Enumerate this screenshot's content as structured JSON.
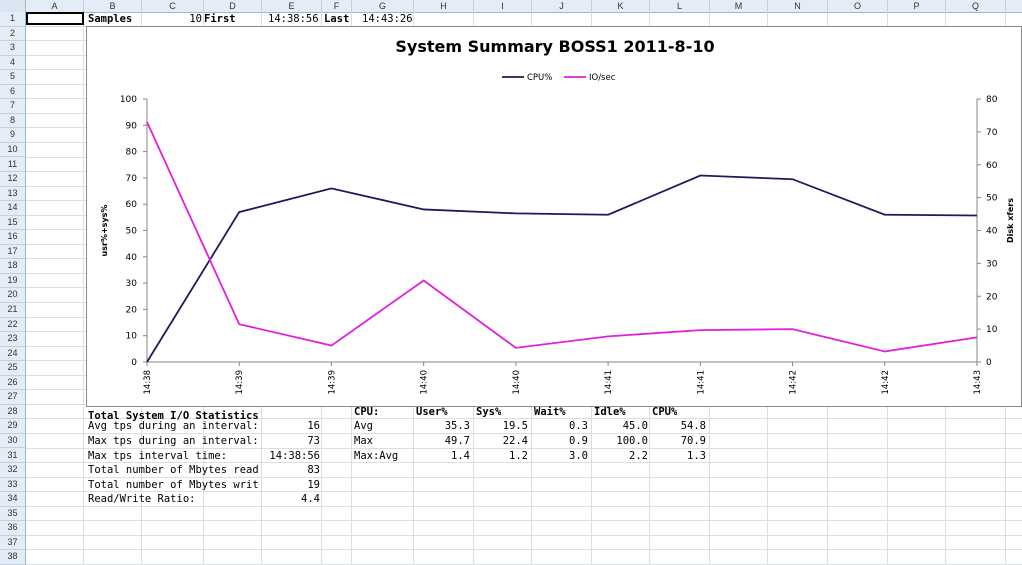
{
  "columns": [
    "A",
    "B",
    "C",
    "D",
    "E",
    "F",
    "G",
    "H",
    "I",
    "J",
    "K",
    "L",
    "M",
    "N",
    "O",
    "P",
    "Q"
  ],
  "rows": [
    "1",
    "2",
    "3",
    "4",
    "5",
    "6",
    "7",
    "8",
    "9",
    "10",
    "11",
    "12",
    "13",
    "14",
    "15",
    "16",
    "17",
    "18",
    "19",
    "20",
    "21",
    "22",
    "23",
    "24",
    "25",
    "26",
    "27",
    "28",
    "29",
    "30",
    "31",
    "32",
    "33",
    "34",
    "35",
    "36",
    "37",
    "38"
  ],
  "row1": {
    "samples_label": "Samples",
    "samples_value": "10",
    "first_label": "First",
    "first_value": "14:38:56",
    "last_label": "Last",
    "last_value": "14:43:26"
  },
  "io_stats": {
    "header": "Total System I/O Statistics",
    "rows": [
      {
        "label": "Avg tps during an interval:",
        "value": "16"
      },
      {
        "label": "Max tps during an interval:",
        "value": "73"
      },
      {
        "label": "Max tps interval time:",
        "value": "14:38:56"
      },
      {
        "label": "Total number of Mbytes read",
        "value": "83"
      },
      {
        "label": "Total number of Mbytes writ",
        "value": "19"
      },
      {
        "label": "Read/Write Ratio:",
        "value": "4.4"
      }
    ]
  },
  "cpu_stats": {
    "headers": [
      "CPU:",
      "User%",
      "Sys%",
      "Wait%",
      "Idle%",
      "CPU%"
    ],
    "rows": [
      {
        "name": "Avg",
        "values": [
          "35.3",
          "19.5",
          "0.3",
          "45.0",
          "54.8"
        ]
      },
      {
        "name": "Max",
        "values": [
          "49.7",
          "22.4",
          "0.9",
          "100.0",
          "70.9"
        ]
      },
      {
        "name": "Max:Avg",
        "values": [
          "1.4",
          "1.2",
          "3.0",
          "2.2",
          "1.3"
        ]
      }
    ]
  },
  "colors": {
    "cpu_line": "#1f1a5c",
    "io_line": "#e01fe0"
  },
  "chart_data": {
    "type": "line",
    "title": "System Summary BOSS1  2011-8-10",
    "categories": [
      "14:38",
      "14:39",
      "14:39",
      "14:40",
      "14:40",
      "14:41",
      "14:41",
      "14:42",
      "14:42",
      "14:43"
    ],
    "series": [
      {
        "name": "CPU%",
        "axis": "left",
        "values": [
          0,
          57,
          66,
          58,
          56.5,
          56,
          70.9,
          69.5,
          56,
          55.7
        ]
      },
      {
        "name": "IO/sec",
        "axis": "right",
        "values": [
          73,
          11.5,
          5,
          24.8,
          4.3,
          7.8,
          9.7,
          10,
          3.2,
          7.5
        ]
      }
    ],
    "ylabel": "usr%+sys%",
    "y2label": "Disk xfers",
    "ylim": [
      0,
      100
    ],
    "y2lim": [
      0,
      80
    ],
    "yticks": [
      0,
      10,
      20,
      30,
      40,
      50,
      60,
      70,
      80,
      90,
      100
    ],
    "y2ticks": [
      0,
      10,
      20,
      30,
      40,
      50,
      60,
      70,
      80
    ],
    "legend": "top-center",
    "grid": false
  }
}
